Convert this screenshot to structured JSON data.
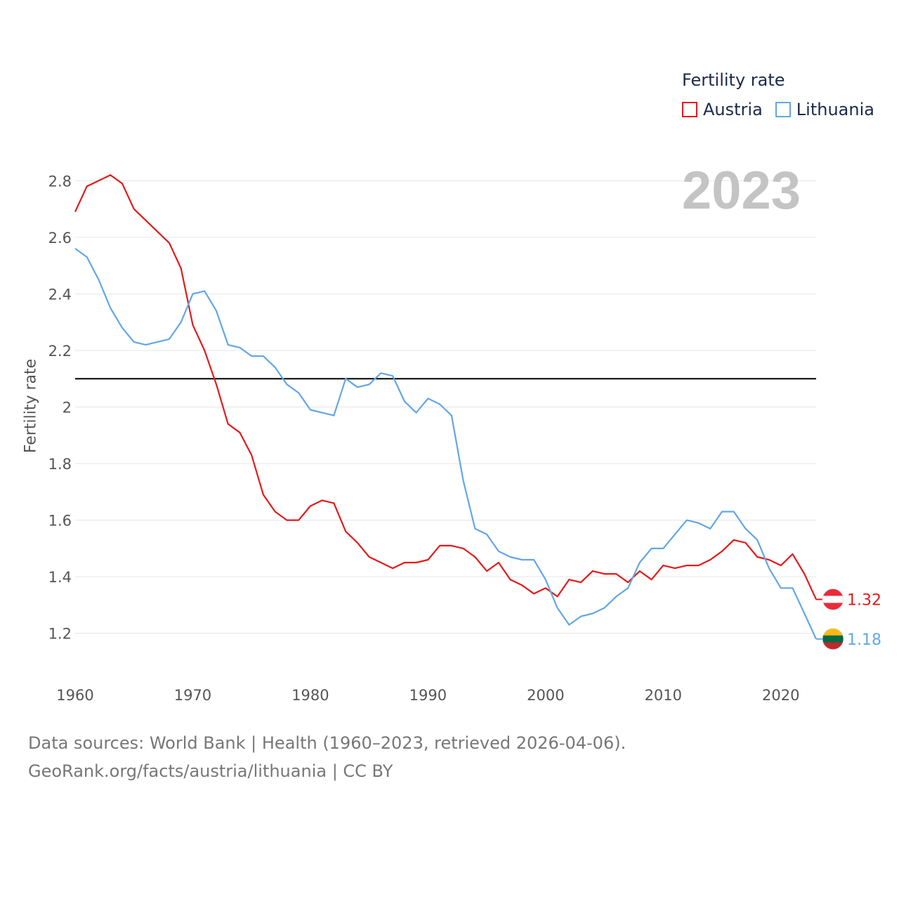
{
  "legend": {
    "title": "Fertility rate",
    "items": [
      {
        "label": "Austria",
        "color": "#e31a1c"
      },
      {
        "label": "Lithuania",
        "color": "#63a6e6"
      }
    ]
  },
  "current_year": "2023",
  "footer": {
    "line1": "Data sources: World Bank | Health (1960–2023, retrieved 2026-04-06).",
    "line2": "GeoRank.org/facts/austria/lithuania | CC BY"
  },
  "chart_data": {
    "type": "line",
    "title": "",
    "xlabel": "",
    "ylabel": "Fertility rate",
    "xlim": [
      1960,
      2023
    ],
    "ylim": [
      1.1,
      2.9
    ],
    "x_ticks": [
      1960,
      1970,
      1980,
      1990,
      2000,
      2010,
      2020
    ],
    "y_ticks": [
      1.2,
      1.4,
      1.6,
      1.8,
      2,
      2.2,
      2.4,
      2.6,
      2.8
    ],
    "y_tick_labels": [
      "1.2",
      "1.4",
      "1.6",
      "1.8",
      "2",
      "2.2",
      "2.4",
      "2.6",
      "2.8"
    ],
    "reference_line": {
      "y": 2.1,
      "color": "#000000"
    },
    "x": [
      1960,
      1961,
      1962,
      1963,
      1964,
      1965,
      1966,
      1967,
      1968,
      1969,
      1970,
      1971,
      1972,
      1973,
      1974,
      1975,
      1976,
      1977,
      1978,
      1979,
      1980,
      1981,
      1982,
      1983,
      1984,
      1985,
      1986,
      1987,
      1988,
      1989,
      1990,
      1991,
      1992,
      1993,
      1994,
      1995,
      1996,
      1997,
      1998,
      1999,
      2000,
      2001,
      2002,
      2003,
      2004,
      2005,
      2006,
      2007,
      2008,
      2009,
      2010,
      2011,
      2012,
      2013,
      2014,
      2015,
      2016,
      2017,
      2018,
      2019,
      2020,
      2021,
      2022,
      2023
    ],
    "series": [
      {
        "name": "Austria",
        "color": "#e31a1c",
        "end_label": "1.32",
        "values": [
          2.69,
          2.78,
          2.8,
          2.82,
          2.79,
          2.7,
          2.66,
          2.62,
          2.58,
          2.49,
          2.29,
          2.2,
          2.08,
          1.94,
          1.91,
          1.83,
          1.69,
          1.63,
          1.6,
          1.6,
          1.65,
          1.67,
          1.66,
          1.56,
          1.52,
          1.47,
          1.45,
          1.43,
          1.45,
          1.45,
          1.46,
          1.51,
          1.51,
          1.5,
          1.47,
          1.42,
          1.45,
          1.39,
          1.37,
          1.34,
          1.36,
          1.33,
          1.39,
          1.38,
          1.42,
          1.41,
          1.41,
          1.38,
          1.42,
          1.39,
          1.44,
          1.43,
          1.44,
          1.44,
          1.46,
          1.49,
          1.53,
          1.52,
          1.47,
          1.46,
          1.44,
          1.48,
          1.41,
          1.32
        ]
      },
      {
        "name": "Lithuania",
        "color": "#63a6e6",
        "end_label": "1.18",
        "values": [
          2.56,
          2.53,
          2.45,
          2.35,
          2.28,
          2.23,
          2.22,
          2.23,
          2.24,
          2.3,
          2.4,
          2.41,
          2.34,
          2.22,
          2.21,
          2.18,
          2.18,
          2.14,
          2.08,
          2.05,
          1.99,
          1.98,
          1.97,
          2.1,
          2.07,
          2.08,
          2.12,
          2.11,
          2.02,
          1.98,
          2.03,
          2.01,
          1.97,
          1.74,
          1.57,
          1.55,
          1.49,
          1.47,
          1.46,
          1.46,
          1.39,
          1.29,
          1.23,
          1.26,
          1.27,
          1.29,
          1.33,
          1.36,
          1.45,
          1.5,
          1.5,
          1.55,
          1.6,
          1.59,
          1.57,
          1.63,
          1.63,
          1.57,
          1.53,
          1.43,
          1.36,
          1.36,
          1.27,
          1.18
        ]
      }
    ]
  }
}
